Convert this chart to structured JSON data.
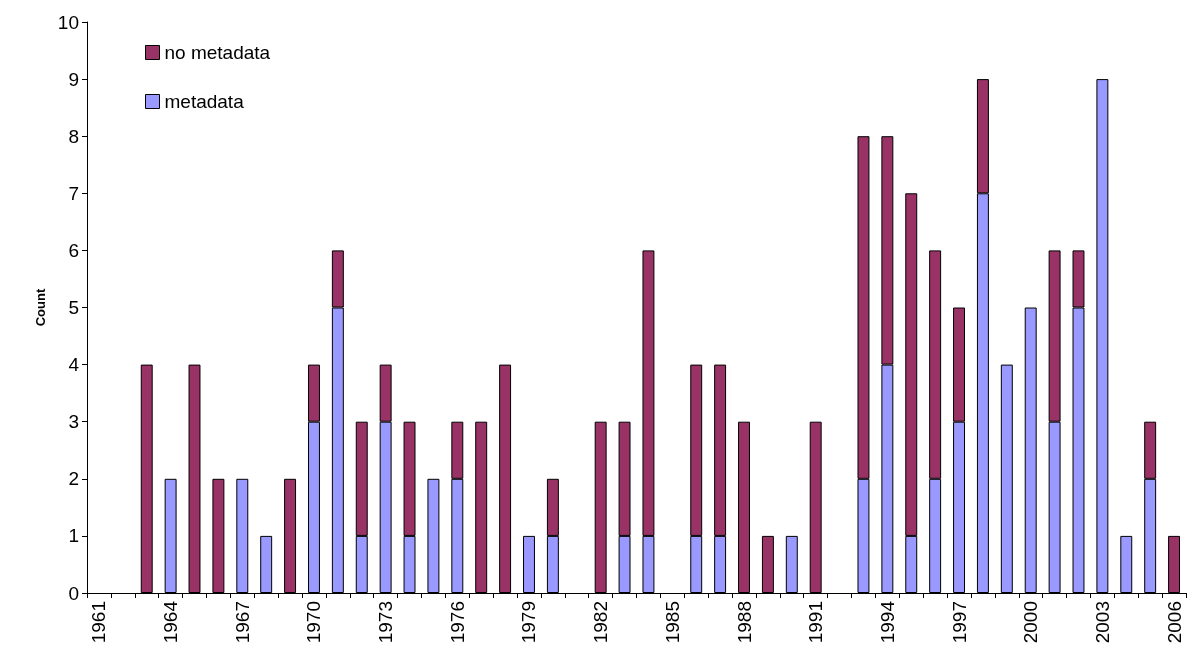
{
  "chart_data": {
    "type": "bar",
    "stacked": true,
    "ylabel": "Count",
    "ylim": [
      0,
      10
    ],
    "yticks": [
      0,
      1,
      2,
      3,
      4,
      5,
      6,
      7,
      8,
      9,
      10
    ],
    "grid": false,
    "legend": "top left",
    "categories": [
      "1961",
      null,
      null,
      "1964",
      null,
      null,
      "1967",
      null,
      null,
      "1970",
      null,
      null,
      "1973",
      null,
      null,
      "1976",
      null,
      null,
      "1979",
      null,
      null,
      "1982",
      null,
      null,
      "1985",
      null,
      null,
      "1988",
      null,
      null,
      "1991",
      null,
      null,
      "1994",
      null,
      null,
      "1997",
      null,
      null,
      "2000",
      null,
      null,
      "2003",
      null,
      null,
      "2006"
    ],
    "series": [
      {
        "name": "metadata",
        "color": "#9999ff",
        "values": [
          null,
          null,
          null,
          2,
          null,
          null,
          2,
          1,
          null,
          3,
          5,
          1,
          3,
          1,
          2,
          2,
          null,
          null,
          1,
          1,
          null,
          null,
          1,
          1,
          null,
          1,
          1,
          null,
          null,
          1,
          null,
          null,
          2,
          4,
          1,
          2,
          3,
          7,
          4,
          5,
          3,
          5,
          9,
          1,
          2,
          null
        ]
      },
      {
        "name": "no metadata",
        "color": "#993366",
        "values": [
          null,
          null,
          4,
          null,
          4,
          2,
          null,
          null,
          2,
          1,
          1,
          2,
          1,
          2,
          null,
          1,
          3,
          4,
          null,
          1,
          null,
          3,
          2,
          5,
          null,
          3,
          3,
          3,
          1,
          null,
          3,
          null,
          6,
          4,
          6,
          4,
          2,
          2,
          null,
          null,
          3,
          1,
          null,
          null,
          1,
          1
        ]
      }
    ]
  }
}
